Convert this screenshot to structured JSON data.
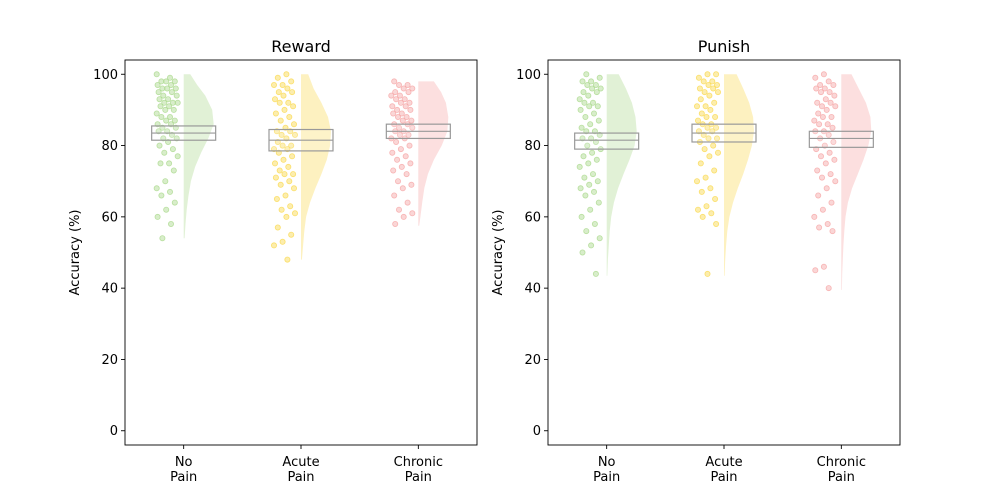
{
  "chart_data": {
    "type": "raincloud",
    "categories": [
      [
        "No",
        "Pain"
      ],
      [
        "Acute",
        "Pain"
      ],
      [
        "Chronic",
        "Pain"
      ]
    ],
    "group_colors": {
      "no_pain": "#a8d88a",
      "acute_pain": "#f9d84a",
      "chronic_pain": "#f5a3a3"
    },
    "box_color": "#999999",
    "ylabel": "Accuracy (%)",
    "ylim": [
      -4,
      104
    ],
    "yticks": [
      0,
      20,
      40,
      60,
      80,
      100
    ],
    "panels": [
      {
        "title": "Reward",
        "groups": [
          {
            "name": "No Pain",
            "q1": 81.5,
            "median": 83.5,
            "q3": 85.5,
            "min": 54,
            "max": 100,
            "density": [
              [
                54,
                0.03
              ],
              [
                58,
                0.06
              ],
              [
                62,
                0.1
              ],
              [
                66,
                0.16
              ],
              [
                70,
                0.24
              ],
              [
                74,
                0.38
              ],
              [
                78,
                0.58
              ],
              [
                82,
                0.82
              ],
              [
                86,
                1.0
              ],
              [
                90,
                0.95
              ],
              [
                94,
                0.72
              ],
              [
                97,
                0.45
              ],
              [
                100,
                0.22
              ]
            ],
            "points": [
              100,
              99,
              98,
              98,
              98,
              97,
              97,
              96,
              96,
              96,
              95,
              95,
              94,
              94,
              93,
              93,
              92,
              92,
              92,
              91,
              91,
              90,
              90,
              89,
              88,
              88,
              87,
              87,
              86,
              86,
              85,
              85,
              84,
              84,
              83,
              82,
              82,
              81,
              80,
              79,
              78,
              77,
              75,
              75,
              73,
              70,
              68,
              67,
              66,
              64,
              62,
              60,
              58,
              54
            ]
          },
          {
            "name": "Acute Pain",
            "q1": 78.5,
            "median": 81.5,
            "q3": 84.5,
            "min": 48,
            "max": 100,
            "density": [
              [
                48,
                0.03
              ],
              [
                52,
                0.07
              ],
              [
                56,
                0.11
              ],
              [
                60,
                0.17
              ],
              [
                64,
                0.3
              ],
              [
                68,
                0.48
              ],
              [
                72,
                0.68
              ],
              [
                76,
                0.86
              ],
              [
                80,
                0.97
              ],
              [
                84,
                1.0
              ],
              [
                88,
                0.9
              ],
              [
                92,
                0.68
              ],
              [
                96,
                0.42
              ],
              [
                100,
                0.24
              ]
            ],
            "points": [
              100,
              99,
              98,
              97,
              97,
              96,
              95,
              95,
              94,
              93,
              92,
              92,
              91,
              90,
              89,
              88,
              87,
              86,
              85,
              84,
              84,
              83,
              83,
              82,
              81,
              80,
              80,
              79,
              79,
              78,
              77,
              76,
              75,
              74,
              73,
              72,
              72,
              71,
              70,
              69,
              68,
              66,
              65,
              63,
              62,
              61,
              60,
              57,
              55,
              53,
              52,
              48
            ]
          },
          {
            "name": "Chronic Pain",
            "q1": 82,
            "median": 84,
            "q3": 86,
            "min": 57.5,
            "max": 98,
            "density": [
              [
                57.5,
                0.03
              ],
              [
                60,
                0.07
              ],
              [
                64,
                0.13
              ],
              [
                68,
                0.2
              ],
              [
                72,
                0.32
              ],
              [
                76,
                0.52
              ],
              [
                80,
                0.78
              ],
              [
                84,
                0.97
              ],
              [
                88,
                1.0
              ],
              [
                92,
                0.92
              ],
              [
                95,
                0.76
              ],
              [
                98,
                0.52
              ]
            ],
            "points": [
              98,
              97,
              97,
              96,
              96,
              95,
              95,
              94,
              94,
              93,
              93,
              92,
              92,
              91,
              91,
              90,
              90,
              89,
              89,
              88,
              88,
              87,
              87,
              86,
              86,
              85,
              85,
              84,
              84,
              83,
              83,
              82,
              82,
              81,
              80,
              79,
              78,
              77,
              76,
              75,
              74,
              73,
              72,
              70,
              69,
              68,
              66,
              64,
              62,
              61,
              60,
              58
            ]
          }
        ]
      },
      {
        "title": "Punish",
        "groups": [
          {
            "name": "No Pain",
            "q1": 79,
            "median": 81.5,
            "q3": 83.5,
            "min": 43.5,
            "max": 100,
            "density": [
              [
                43.5,
                0.02
              ],
              [
                48,
                0.04
              ],
              [
                52,
                0.07
              ],
              [
                56,
                0.1
              ],
              [
                60,
                0.15
              ],
              [
                64,
                0.24
              ],
              [
                68,
                0.38
              ],
              [
                72,
                0.56
              ],
              [
                76,
                0.76
              ],
              [
                80,
                0.93
              ],
              [
                84,
                1.0
              ],
              [
                88,
                0.96
              ],
              [
                92,
                0.84
              ],
              [
                96,
                0.64
              ],
              [
                100,
                0.4
              ]
            ],
            "points": [
              100,
              99,
              98,
              98,
              97,
              97,
              96,
              96,
              95,
              95,
              94,
              93,
              92,
              92,
              91,
              91,
              90,
              89,
              88,
              87,
              86,
              85,
              84,
              84,
              83,
              82,
              82,
              81,
              80,
              79,
              78,
              77,
              76,
              75,
              74,
              72,
              71,
              70,
              69,
              68,
              67,
              66,
              64,
              62,
              60,
              58,
              56,
              54,
              52,
              50,
              44
            ]
          },
          {
            "name": "Acute Pain",
            "q1": 81,
            "median": 83.5,
            "q3": 86,
            "min": 43.5,
            "max": 100,
            "density": [
              [
                43.5,
                0.02
              ],
              [
                48,
                0.04
              ],
              [
                52,
                0.07
              ],
              [
                56,
                0.11
              ],
              [
                60,
                0.18
              ],
              [
                64,
                0.3
              ],
              [
                68,
                0.46
              ],
              [
                72,
                0.64
              ],
              [
                76,
                0.8
              ],
              [
                80,
                0.93
              ],
              [
                84,
                1.0
              ],
              [
                88,
                0.97
              ],
              [
                92,
                0.84
              ],
              [
                96,
                0.64
              ],
              [
                100,
                0.42
              ]
            ],
            "points": [
              100,
              100,
              99,
              98,
              98,
              97,
              97,
              96,
              96,
              95,
              95,
              94,
              93,
              92,
              91,
              91,
              90,
              89,
              88,
              88,
              87,
              86,
              86,
              85,
              85,
              84,
              84,
              83,
              82,
              82,
              81,
              80,
              79,
              78,
              77,
              75,
              73,
              71,
              70,
              68,
              67,
              65,
              63,
              62,
              61,
              60,
              58,
              44
            ]
          },
          {
            "name": "Chronic Pain",
            "q1": 79.5,
            "median": 82,
            "q3": 84,
            "min": 39.5,
            "max": 100,
            "density": [
              [
                39.5,
                0.02
              ],
              [
                44,
                0.03
              ],
              [
                48,
                0.05
              ],
              [
                52,
                0.07
              ],
              [
                56,
                0.1
              ],
              [
                60,
                0.14
              ],
              [
                64,
                0.22
              ],
              [
                68,
                0.36
              ],
              [
                72,
                0.55
              ],
              [
                76,
                0.74
              ],
              [
                80,
                0.9
              ],
              [
                84,
                1.0
              ],
              [
                88,
                0.97
              ],
              [
                92,
                0.82
              ],
              [
                96,
                0.58
              ],
              [
                100,
                0.34
              ]
            ],
            "points": [
              100,
              99,
              98,
              97,
              97,
              96,
              96,
              95,
              95,
              94,
              93,
              92,
              92,
              91,
              91,
              90,
              89,
              88,
              88,
              87,
              86,
              86,
              85,
              84,
              84,
              83,
              82,
              81,
              80,
              79,
              78,
              77,
              76,
              75,
              73,
              72,
              71,
              70,
              68,
              66,
              64,
              62,
              60,
              58,
              57,
              56,
              46,
              45,
              40
            ]
          }
        ]
      }
    ]
  }
}
